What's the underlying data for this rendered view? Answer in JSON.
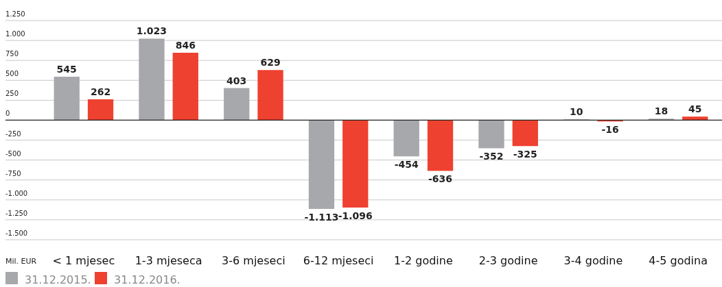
{
  "chart_data": {
    "type": "bar",
    "annotations": [
      "Mil. EUR"
    ],
    "categories": [
      "< 1 mjesec",
      "1-3 mjeseca",
      "3-6 mjeseci",
      "6-12 mjeseci",
      "1-2 godine",
      "2-3 godine",
      "3-4 godine",
      "4-5 godina"
    ],
    "series": [
      {
        "name": "31.12.2015.",
        "color": "#a7a8ab",
        "values": [
          545,
          1023,
          403,
          -1113,
          -454,
          -352,
          10,
          18
        ],
        "value_labels": [
          "545",
          "1.023",
          "403",
          "-1.113",
          "-454",
          "-352",
          "10",
          "18"
        ]
      },
      {
        "name": "31.12.2016.",
        "color": "#ee4130",
        "values": [
          262,
          846,
          629,
          -1096,
          -636,
          -325,
          -16,
          45
        ],
        "value_labels": [
          "262",
          "846",
          "629",
          "-1.096",
          "-636",
          "-325",
          "-16",
          "45"
        ]
      }
    ],
    "ylim": [
      -1500,
      1250
    ],
    "yticks": [
      {
        "value": -1500,
        "label": "-1.500"
      },
      {
        "value": -1250,
        "label": "-1.250"
      },
      {
        "value": -1000,
        "label": "-1.000"
      },
      -750,
      -500,
      -250,
      0,
      250,
      500,
      750,
      {
        "value": 1000,
        "label": "1.000"
      },
      {
        "value": 1250,
        "label": "1.250"
      }
    ],
    "grid": "y",
    "legend": "bottom left"
  }
}
